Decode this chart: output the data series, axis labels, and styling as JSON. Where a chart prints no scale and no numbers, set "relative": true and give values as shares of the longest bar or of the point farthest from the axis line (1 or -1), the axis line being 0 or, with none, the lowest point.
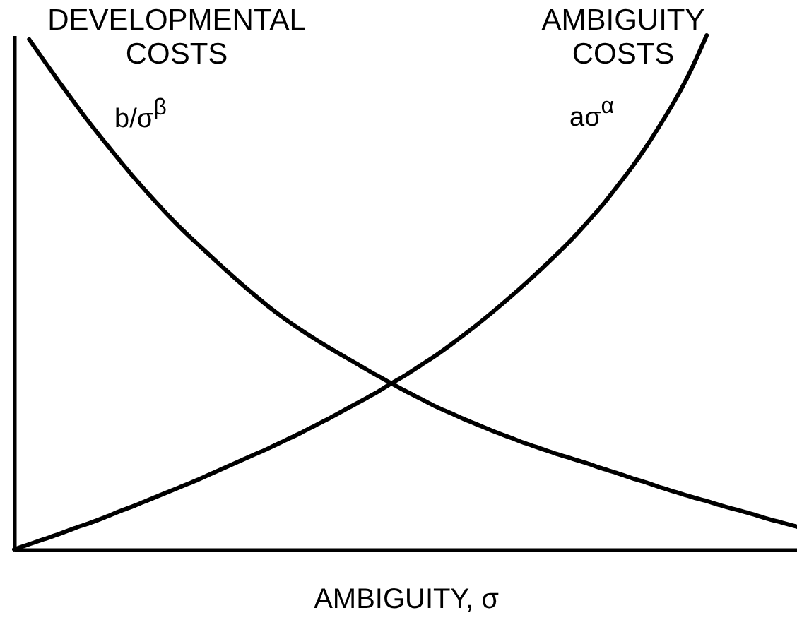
{
  "chart_data": {
    "type": "line",
    "relative": true,
    "xlabel": "AMBIGUITY, σ",
    "categories": [
      null,
      null,
      null,
      null,
      null,
      null,
      null,
      null,
      null,
      null,
      null,
      null,
      null,
      null,
      null,
      null,
      null,
      null,
      null,
      null,
      null,
      null,
      null,
      null,
      null,
      null,
      null,
      null,
      null,
      null,
      null,
      null,
      null,
      null,
      null,
      null,
      null,
      null,
      null,
      null,
      null,
      null,
      null,
      null,
      null,
      null,
      null,
      null,
      null,
      null,
      null,
      null,
      null
    ],
    "series": [
      {
        "name": "DEVELOPMENTAL COSTS",
        "color": "#000000",
        "values": [
          null,
          0.992,
          0.95,
          0.909,
          0.869,
          0.83,
          0.793,
          0.757,
          0.722,
          0.689,
          0.657,
          0.627,
          0.599,
          0.572,
          0.545,
          0.519,
          0.494,
          0.47,
          0.448,
          0.428,
          0.409,
          0.391,
          0.374,
          0.357,
          0.34,
          0.324,
          0.308,
          0.293,
          0.278,
          0.265,
          0.252,
          0.24,
          0.228,
          0.217,
          0.206,
          0.196,
          0.186,
          0.177,
          0.168,
          0.158,
          0.149,
          0.139,
          0.13,
          0.12,
          0.111,
          0.102,
          0.094,
          0.085,
          0.077,
          0.069,
          0.06,
          0.052,
          0.044
        ]
      },
      {
        "name": "AMBIGUITY COSTS",
        "color": "#000000",
        "values": [
          0,
          0.01,
          0.02,
          0.03,
          0.041,
          0.051,
          0.062,
          0.074,
          0.085,
          0.097,
          0.109,
          0.121,
          0.133,
          0.146,
          0.159,
          0.172,
          0.185,
          0.198,
          0.212,
          0.226,
          0.241,
          0.256,
          0.272,
          0.288,
          0.304,
          0.322,
          0.339,
          0.358,
          0.377,
          0.398,
          0.42,
          0.443,
          0.467,
          0.492,
          0.518,
          0.545,
          0.573,
          0.602,
          0.634,
          0.667,
          0.704,
          0.742,
          0.784,
          0.83,
          0.879,
          0.935,
          1,
          null,
          null,
          null,
          null,
          null,
          null
        ]
      }
    ],
    "annotations": [
      "b/σ$^{β}$",
      "aσ$^{α}$"
    ]
  }
}
